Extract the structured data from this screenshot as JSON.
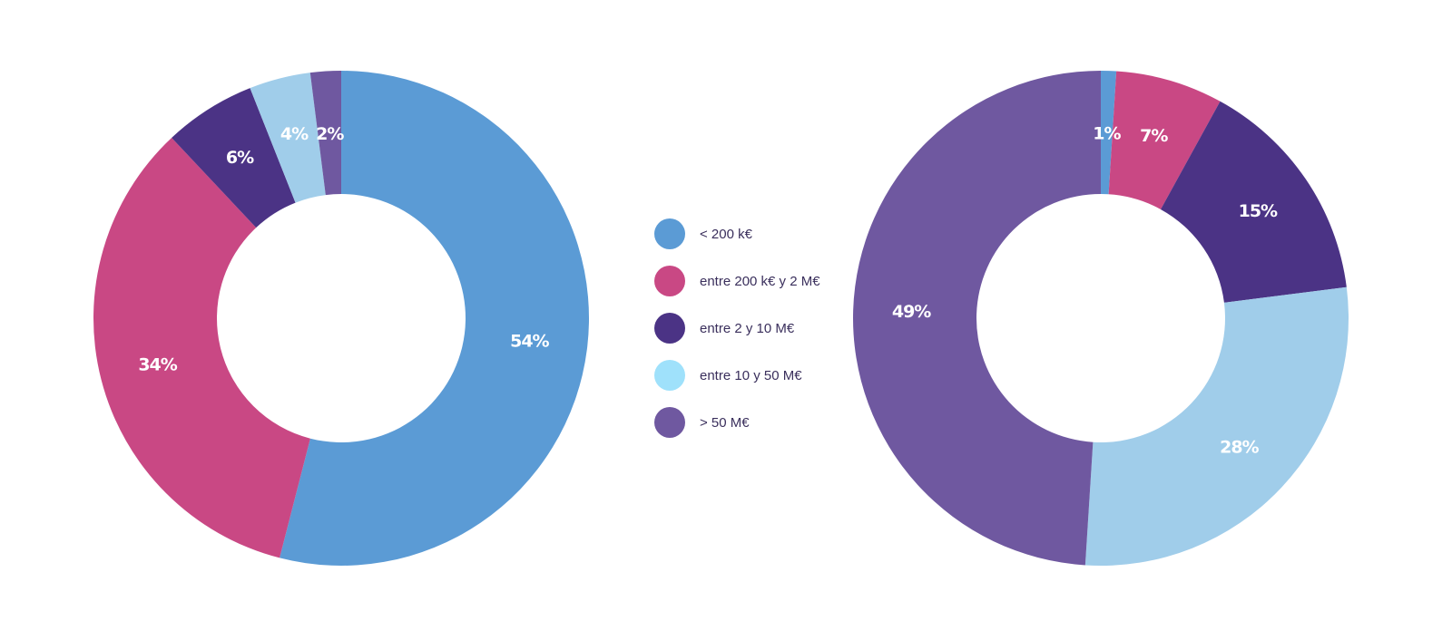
{
  "legend": {
    "items": [
      {
        "label": "< 200  k€",
        "color": "#5b9bd5"
      },
      {
        "label": "entre 200 k€ y 2 M€",
        "color": "#c94884"
      },
      {
        "label": "entre 2 y 10 M€",
        "color": "#4b3385"
      },
      {
        "label": "entre 10 y 50 M€",
        "color": "#9fe1fb"
      },
      {
        "label": "> 50 M€",
        "color": "#6f58a0"
      }
    ]
  },
  "chart_data": [
    {
      "type": "pie",
      "donut": true,
      "categories": [
        "< 200  k€",
        "entre 200 k€ y 2 M€",
        "entre 2 y 10 M€",
        "entre 10 y 50 M€",
        "> 50 M€"
      ],
      "values": [
        54,
        34,
        6,
        4,
        2
      ],
      "data_labels": [
        "54%",
        "34%",
        "6%",
        "4%",
        "2%"
      ],
      "colors": [
        "#5b9bd5",
        "#c94884",
        "#4b3385",
        "#a0cdea",
        "#6f58a0"
      ],
      "start": "top",
      "direction": "clockwise"
    },
    {
      "type": "pie",
      "donut": true,
      "categories": [
        "< 200  k€",
        "entre 200 k€ y 2 M€",
        "entre 2 y 10 M€",
        "entre 10 y 50 M€",
        "> 50 M€"
      ],
      "values": [
        1,
        7,
        15,
        28,
        49
      ],
      "data_labels": [
        "1%",
        "7%",
        "15%",
        "28%",
        "49%"
      ],
      "colors": [
        "#5b9bd5",
        "#c94884",
        "#4b3385",
        "#a0cdea",
        "#6f58a0"
      ],
      "start": "top",
      "direction": "clockwise"
    }
  ]
}
